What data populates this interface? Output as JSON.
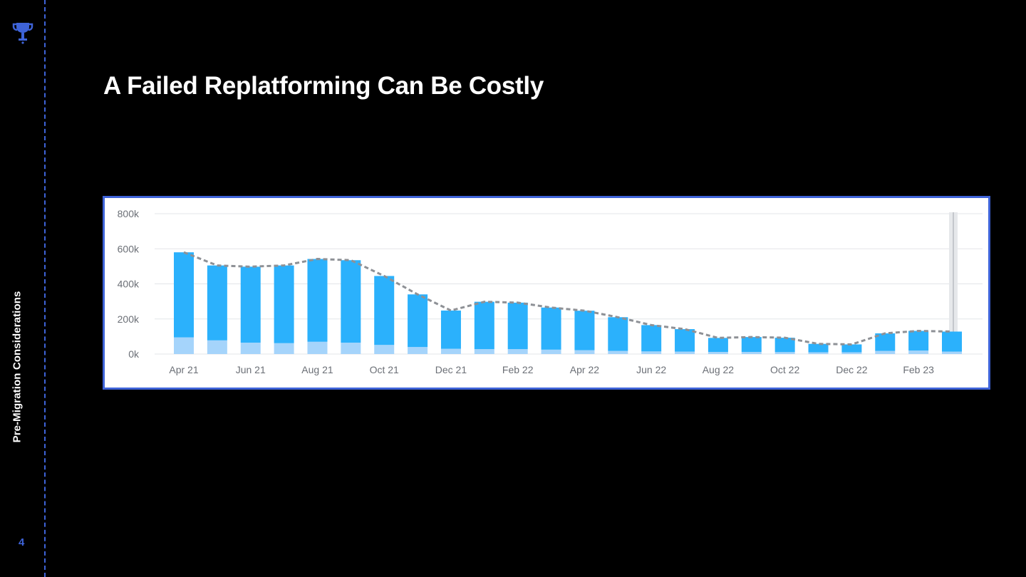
{
  "sidebar": {
    "section_label": "Pre-Migration Considerations",
    "page_number": "4",
    "logo_icon": "trophy-icon",
    "accent_color": "#3e63d8"
  },
  "slide": {
    "title": "A Failed Replatforming Can Be Costly"
  },
  "chart_data": {
    "type": "bar",
    "stacked": true,
    "categories": [
      "Apr 21",
      "May 21",
      "Jun 21",
      "Jul 21",
      "Aug 21",
      "Sep 21",
      "Oct 21",
      "Nov 21",
      "Dec 21",
      "Jan 22",
      "Feb 22",
      "Mar 22",
      "Apr 22",
      "May 22",
      "Jun 22",
      "Jul 22",
      "Aug 22",
      "Sep 22",
      "Oct 22",
      "Nov 22",
      "Dec 22",
      "Jan 23",
      "Feb 23",
      "Mar 23"
    ],
    "x_tick_labels": [
      "Apr 21",
      "Jun 21",
      "Aug 21",
      "Oct 21",
      "Dec 21",
      "Feb 22",
      "Apr 22",
      "Jun 22",
      "Aug 22",
      "Oct 22",
      "Dec 22",
      "Feb 23"
    ],
    "series": [
      {
        "color": "#a5d4fb",
        "values": [
          95,
          78,
          65,
          62,
          70,
          65,
          52,
          40,
          30,
          28,
          28,
          25,
          22,
          18,
          15,
          14,
          12,
          12,
          11,
          10,
          10,
          18,
          20,
          14
        ]
      },
      {
        "color": "#2bb1fc",
        "values": [
          485,
          427,
          433,
          443,
          472,
          470,
          393,
          300,
          218,
          270,
          265,
          240,
          225,
          192,
          150,
          128,
          80,
          85,
          82,
          48,
          45,
          100,
          112,
          114
        ]
      }
    ],
    "trend_line": {
      "style": "dashed",
      "color": "#8e9196",
      "values": [
        580,
        505,
        498,
        505,
        542,
        535,
        445,
        340,
        248,
        298,
        293,
        265,
        247,
        210,
        165,
        142,
        92,
        97,
        93,
        58,
        55,
        118,
        132,
        128
      ]
    },
    "yticks": [
      "0k",
      "200k",
      "400k",
      "600k",
      "800k"
    ],
    "ylim": [
      0,
      800
    ],
    "grid": true,
    "legend": "none",
    "highlight_last_category": true
  }
}
